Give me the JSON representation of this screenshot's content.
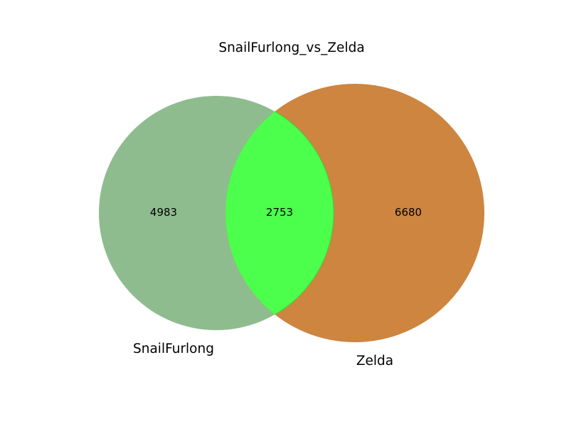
{
  "chart_data": {
    "type": "venn",
    "title": "SnailFurlong_vs_Zelda",
    "sets": [
      {
        "name": "SnailFurlong",
        "only_count": "4983",
        "color": "#8fbc8f"
      },
      {
        "name": "Zelda",
        "only_count": "6680",
        "color": "#cd853f"
      }
    ],
    "intersection": {
      "count": "2753",
      "color": "#4cff4c"
    }
  }
}
